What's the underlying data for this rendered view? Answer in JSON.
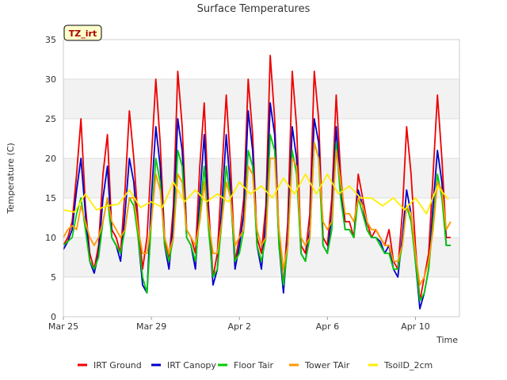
{
  "chart_data": {
    "type": "line",
    "title": "Surface Temperatures",
    "xlabel": "Time",
    "ylabel": "Temperature (C)",
    "ylim": [
      0,
      35
    ],
    "yticks": [
      0,
      5,
      10,
      15,
      20,
      25,
      30,
      35
    ],
    "xlim": [
      0,
      18
    ],
    "xtick_positions": [
      0,
      4,
      8,
      12,
      16
    ],
    "xtick_labels": [
      "Mar 25",
      "Mar 29",
      "Apr 2",
      "Apr 6",
      "Apr 10"
    ],
    "badge": "TZ_irt",
    "grid": true,
    "legend_position": "bottom",
    "series": [
      {
        "name": "IRT Ground",
        "color": "#ee0000",
        "x": [
          0,
          0.2,
          0.4,
          0.6,
          0.8,
          1,
          1.2,
          1.4,
          1.6,
          1.8,
          2,
          2.2,
          2.4,
          2.6,
          2.8,
          3,
          3.2,
          3.4,
          3.6,
          3.8,
          4,
          4.2,
          4.4,
          4.6,
          4.8,
          5,
          5.2,
          5.4,
          5.6,
          5.8,
          6,
          6.2,
          6.4,
          6.6,
          6.8,
          7,
          7.2,
          7.4,
          7.6,
          7.8,
          8,
          8.2,
          8.4,
          8.6,
          8.8,
          9,
          9.2,
          9.4,
          9.6,
          9.8,
          10,
          10.2,
          10.4,
          10.6,
          10.8,
          11,
          11.2,
          11.4,
          11.6,
          11.8,
          12,
          12.2,
          12.4,
          12.6,
          12.8,
          13,
          13.2,
          13.4,
          13.6,
          13.8,
          14,
          14.2,
          14.4,
          14.6,
          14.8,
          15,
          15.2,
          15.4,
          15.6,
          15.8,
          16,
          16.2,
          16.4,
          16.6,
          16.8,
          17,
          17.2,
          17.4,
          17.6
        ],
        "y": [
          9,
          10,
          12,
          18,
          25,
          14,
          8,
          6,
          9,
          18,
          23,
          11,
          10,
          8,
          16,
          26,
          20,
          12,
          6,
          10,
          20,
          30,
          22,
          10,
          7,
          14,
          31,
          24,
          11,
          10,
          8,
          19,
          27,
          14,
          5,
          8,
          18,
          28,
          19,
          7,
          10,
          15,
          30,
          23,
          10,
          8,
          14,
          33,
          25,
          10,
          4,
          12,
          31,
          24,
          9,
          8,
          13,
          31,
          25,
          10,
          9,
          15,
          28,
          18,
          12,
          12,
          10,
          18,
          15,
          12,
          10,
          11,
          10,
          9,
          11,
          7,
          6,
          13,
          24,
          18,
          9,
          2,
          5,
          8,
          18,
          28,
          20,
          10,
          10
        ],
        "name_legend": "IRT Ground"
      },
      {
        "name": "IRT Canopy",
        "color": "#0000cc",
        "x": [
          0,
          0.2,
          0.4,
          0.6,
          0.8,
          1,
          1.2,
          1.4,
          1.6,
          1.8,
          2,
          2.2,
          2.4,
          2.6,
          2.8,
          3,
          3.2,
          3.4,
          3.6,
          3.8,
          4,
          4.2,
          4.4,
          4.6,
          4.8,
          5,
          5.2,
          5.4,
          5.6,
          5.8,
          6,
          6.2,
          6.4,
          6.6,
          6.8,
          7,
          7.2,
          7.4,
          7.6,
          7.8,
          8,
          8.2,
          8.4,
          8.6,
          8.8,
          9,
          9.2,
          9.4,
          9.6,
          9.8,
          10,
          10.2,
          10.4,
          10.6,
          10.8,
          11,
          11.2,
          11.4,
          11.6,
          11.8,
          12,
          12.2,
          12.4,
          12.6,
          12.8,
          13,
          13.2,
          13.4,
          13.6,
          13.8,
          14,
          14.2,
          14.4,
          14.6,
          14.8,
          15,
          15.2,
          15.4,
          15.6,
          15.8,
          16,
          16.2,
          16.4,
          16.6,
          16.8,
          17,
          17.2,
          17.4,
          17.6
        ],
        "y": [
          8.5,
          9.5,
          11,
          16,
          20,
          13,
          7,
          5.5,
          8,
          15,
          19,
          10,
          9,
          7,
          13,
          20,
          17,
          10,
          4,
          3,
          15,
          24,
          19,
          9,
          6,
          12,
          25,
          21,
          10,
          9,
          6,
          15,
          23,
          12,
          4,
          6,
          14,
          23,
          16,
          6,
          9,
          13,
          26,
          21,
          9,
          6,
          12,
          27,
          23,
          9,
          3,
          10,
          24,
          20,
          8,
          7,
          11,
          25,
          22,
          9,
          8,
          13,
          24,
          16,
          11,
          11,
          10,
          16,
          14,
          11,
          10,
          10,
          9.5,
          8,
          9,
          6,
          5,
          10,
          16,
          13,
          7,
          1,
          3,
          6,
          14,
          21,
          17,
          9,
          9
        ],
        "name_legend": "IRT Canopy"
      },
      {
        "name": "Floor Tair",
        "color": "#00cc00",
        "x": [
          0,
          0.2,
          0.4,
          0.6,
          0.8,
          1,
          1.2,
          1.4,
          1.6,
          1.8,
          2,
          2.2,
          2.4,
          2.6,
          2.8,
          3,
          3.2,
          3.4,
          3.6,
          3.8,
          4,
          4.2,
          4.4,
          4.6,
          4.8,
          5,
          5.2,
          5.4,
          5.6,
          5.8,
          6,
          6.2,
          6.4,
          6.6,
          6.8,
          7,
          7.2,
          7.4,
          7.6,
          7.8,
          8,
          8.2,
          8.4,
          8.6,
          8.8,
          9,
          9.2,
          9.4,
          9.6,
          9.8,
          10,
          10.2,
          10.4,
          10.6,
          10.8,
          11,
          11.2,
          11.4,
          11.6,
          11.8,
          12,
          12.2,
          12.4,
          12.6,
          12.8,
          13,
          13.2,
          13.4,
          13.6,
          13.8,
          14,
          14.2,
          14.4,
          14.6,
          14.8,
          15,
          15.2,
          15.4,
          15.6,
          15.8,
          16,
          16.2,
          16.4,
          16.6,
          16.8,
          17,
          17.2,
          17.4,
          17.6
        ],
        "y": [
          9,
          9.5,
          10,
          13,
          15,
          11,
          7,
          6,
          7.5,
          12,
          15,
          10,
          9,
          8,
          11,
          15,
          14,
          10,
          5,
          3,
          12,
          20,
          17,
          9,
          7,
          10,
          21,
          19,
          10,
          9,
          7,
          13,
          19,
          11,
          5,
          6,
          12,
          19,
          15,
          7,
          8,
          11,
          21,
          19,
          9,
          7,
          10,
          23,
          21,
          9,
          4,
          9,
          21,
          18,
          8,
          7,
          10,
          22,
          20,
          9,
          8,
          11,
          22,
          15,
          11,
          11,
          10,
          15,
          13,
          11,
          10,
          10,
          9,
          8,
          8,
          6,
          6,
          9,
          14,
          12,
          7,
          2,
          3,
          6,
          12,
          18,
          15,
          9,
          9
        ],
        "name_legend": "Floor Tair"
      },
      {
        "name": "Tower TAir",
        "color": "#ff9900",
        "x": [
          0,
          0.2,
          0.4,
          0.6,
          0.8,
          1,
          1.2,
          1.4,
          1.6,
          1.8,
          2,
          2.2,
          2.4,
          2.6,
          2.8,
          3,
          3.2,
          3.4,
          3.6,
          3.8,
          4,
          4.2,
          4.4,
          4.6,
          4.8,
          5,
          5.2,
          5.4,
          5.6,
          5.8,
          6,
          6.2,
          6.4,
          6.6,
          6.8,
          7,
          7.2,
          7.4,
          7.6,
          7.8,
          8,
          8.2,
          8.4,
          8.6,
          8.8,
          9,
          9.2,
          9.4,
          9.6,
          9.8,
          10,
          10.2,
          10.4,
          10.6,
          10.8,
          11,
          11.2,
          11.4,
          11.6,
          11.8,
          12,
          12.2,
          12.4,
          12.6,
          12.8,
          13,
          13.2,
          13.4,
          13.6,
          13.8,
          14,
          14.2,
          14.4,
          14.6,
          14.8,
          15,
          15.2,
          15.4,
          15.6,
          15.8,
          16,
          16.2,
          16.4,
          16.6,
          16.8,
          17,
          17.2,
          17.4,
          17.6
        ],
        "y": [
          10,
          11,
          11.5,
          11,
          14,
          12,
          10,
          9,
          10,
          12,
          15,
          12,
          11,
          10,
          11,
          15,
          15,
          11,
          8,
          8,
          12,
          18,
          16,
          10,
          8,
          10,
          18,
          17,
          11,
          10,
          9,
          12,
          17,
          12,
          8,
          8,
          12,
          17,
          15,
          9,
          10,
          11,
          19,
          18,
          11,
          9,
          10,
          20,
          20,
          11,
          6,
          9,
          20,
          19,
          10,
          9,
          10,
          22,
          20,
          12,
          11,
          12,
          21,
          17,
          13,
          13,
          12,
          15,
          14,
          12,
          11,
          11,
          10,
          9,
          9,
          7,
          7,
          9,
          14,
          13,
          8,
          4,
          5,
          7,
          11,
          17,
          16,
          11,
          12
        ],
        "name_legend": "Tower TAir"
      },
      {
        "name": "TsoilD_2cm",
        "color": "#ffee00",
        "x": [
          0,
          0.5,
          1,
          1.5,
          2,
          2.5,
          3,
          3.5,
          4,
          4.5,
          5,
          5.5,
          6,
          6.5,
          7,
          7.5,
          8,
          8.5,
          9,
          9.5,
          10,
          10.5,
          11,
          11.5,
          12,
          12.5,
          13,
          13.5,
          14,
          14.5,
          15,
          15.5,
          16,
          16.5,
          17,
          17.5
        ],
        "y": [
          13.5,
          13.2,
          15.5,
          13.5,
          14,
          14.2,
          16,
          13.8,
          14.5,
          13.8,
          17,
          14.5,
          16,
          14.5,
          15.5,
          14.5,
          17,
          15.5,
          16.5,
          15,
          17.5,
          15.5,
          18,
          15.5,
          18,
          15.5,
          16.5,
          15,
          15,
          14,
          15,
          13.5,
          15,
          13,
          16.5,
          14.8
        ],
        "name_legend": "TsoilD_2cm"
      }
    ]
  }
}
